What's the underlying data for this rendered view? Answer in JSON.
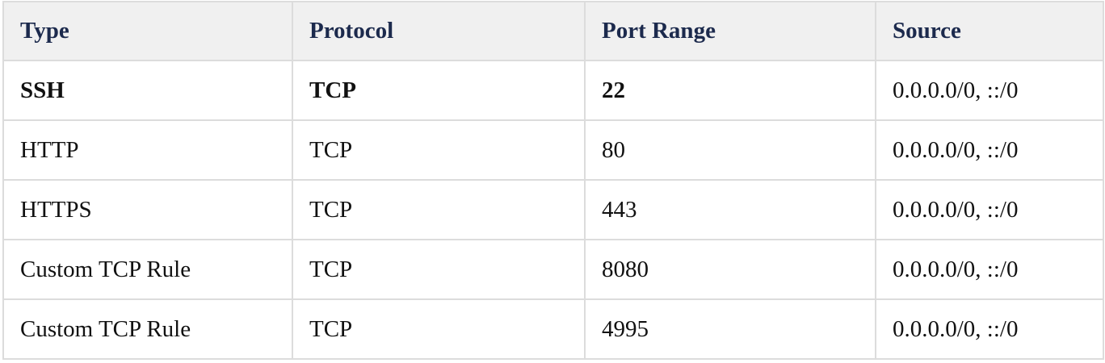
{
  "table": {
    "headers": [
      "Type",
      "Protocol",
      "Port Range",
      "Source"
    ],
    "rows": [
      {
        "type": "SSH",
        "protocol": "TCP",
        "port_range": "22",
        "source": "0.0.0.0/0, ::/0",
        "bold": true
      },
      {
        "type": "HTTP",
        "protocol": "TCP",
        "port_range": "80",
        "source": "0.0.0.0/0, ::/0",
        "bold": false
      },
      {
        "type": "HTTPS",
        "protocol": "TCP",
        "port_range": "443",
        "source": "0.0.0.0/0, ::/0",
        "bold": false
      },
      {
        "type": "Custom TCP Rule",
        "protocol": "TCP",
        "port_range": "8080",
        "source": "0.0.0.0/0, ::/0",
        "bold": false
      },
      {
        "type": "Custom TCP Rule",
        "protocol": "TCP",
        "port_range": "4995",
        "source": "0.0.0.0/0, ::/0",
        "bold": false
      }
    ]
  }
}
